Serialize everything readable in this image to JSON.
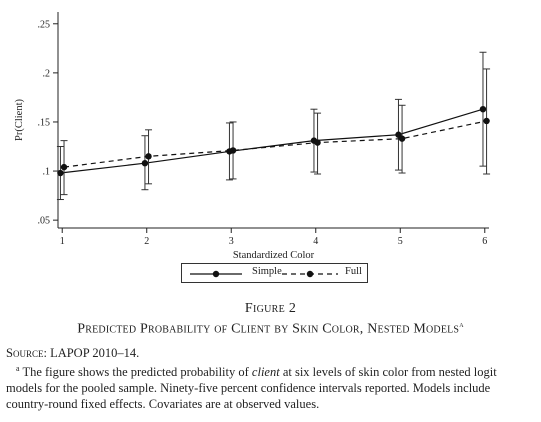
{
  "figure": {
    "number": "Figure 2",
    "title": "Predicted Probability of Client by Skin Color, Nested Models",
    "title_marker": "a",
    "source_label": "Source:",
    "source_text": " LAPOP 2010–14.",
    "note_marker": "a",
    "note_pre": " The figure shows the predicted probability of ",
    "note_italic": "client",
    "note_post": " at six levels of skin color from nested logit models for the pooled sample. Ninety-five percent confidence intervals reported. Models include country-round fixed effects. Covariates are at observed values."
  },
  "legend": {
    "simple": "Simple",
    "full": "Full"
  },
  "chart_data": {
    "type": "line",
    "xlabel": "Standardized Color",
    "ylabel": "Pr(Client)",
    "x": [
      1,
      2,
      3,
      4,
      5,
      6
    ],
    "xticks": [
      "1",
      "2",
      "3",
      "4",
      "5",
      "6"
    ],
    "yticks": [
      ".05",
      ".1",
      ".15",
      ".2",
      ".25"
    ],
    "ytick_values": [
      0.05,
      0.1,
      0.15,
      0.2,
      0.25
    ],
    "ylim": [
      0.042,
      0.262
    ],
    "xlim": [
      0.95,
      6.05
    ],
    "grid": false,
    "legend_position": "bottom",
    "series": [
      {
        "name": "Simple",
        "style": "solid",
        "values": [
          0.098,
          0.108,
          0.12,
          0.131,
          0.137,
          0.163
        ],
        "ci_low": [
          0.071,
          0.081,
          0.091,
          0.099,
          0.101,
          0.105
        ],
        "ci_high": [
          0.125,
          0.136,
          0.149,
          0.163,
          0.173,
          0.221
        ]
      },
      {
        "name": "Full",
        "style": "dashed",
        "values": [
          0.104,
          0.115,
          0.121,
          0.129,
          0.133,
          0.151
        ],
        "ci_low": [
          0.076,
          0.087,
          0.092,
          0.097,
          0.098,
          0.097
        ],
        "ci_high": [
          0.131,
          0.142,
          0.15,
          0.159,
          0.167,
          0.204
        ]
      }
    ]
  }
}
